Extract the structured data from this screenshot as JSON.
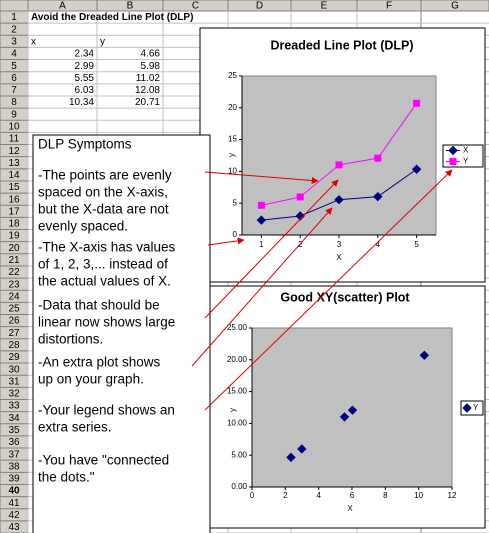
{
  "sheet": {
    "columns": [
      "A",
      "B",
      "C",
      "D",
      "E",
      "F",
      "G"
    ],
    "row_numbers": [
      1,
      2,
      3,
      4,
      5,
      6,
      7,
      8,
      9,
      10,
      11,
      12,
      13,
      14,
      15,
      16,
      17,
      18,
      19,
      20,
      21,
      22,
      23,
      24,
      25,
      26,
      27,
      28,
      29,
      30,
      31,
      32,
      33,
      34,
      35,
      36,
      37,
      38,
      39,
      40,
      41,
      42,
      43
    ],
    "title": "Avoid the Dreaded Line Plot (DLP)",
    "header": [
      "x",
      "y"
    ],
    "rows": [
      [
        2.34,
        4.66
      ],
      [
        2.99,
        5.98
      ],
      [
        5.55,
        11.02
      ],
      [
        6.03,
        12.08
      ],
      [
        10.34,
        20.71
      ]
    ]
  },
  "note": {
    "title": "DLP Symptoms",
    "items": [
      [
        "-The points are evenly",
        "spaced on the X-axis,",
        "but the X-data are not",
        "evenly spaced."
      ],
      [
        "-The X-axis has values",
        "of 1, 2, 3,... instead of",
        "the actual values of X."
      ],
      [
        "-Data that should be",
        "linear now shows large",
        "distortions."
      ],
      [
        "-An extra plot  shows",
        "up on your graph."
      ],
      [
        "-Your legend shows an",
        "extra series."
      ],
      [
        "-You have \"connected",
        "the dots.\""
      ]
    ]
  },
  "chart_data": [
    {
      "type": "line",
      "title": "Dreaded Line Plot (DLP)",
      "x_label": "X",
      "y_label": "y",
      "categories": [
        1,
        2,
        3,
        4,
        5
      ],
      "series": [
        {
          "name": "X",
          "color": "#000080",
          "marker": "diamond",
          "values": [
            2.34,
            2.99,
            5.55,
            6.03,
            10.34
          ]
        },
        {
          "name": "Y",
          "color": "#ff00ff",
          "marker": "square",
          "values": [
            4.66,
            5.98,
            11.02,
            12.08,
            20.71
          ]
        }
      ],
      "ylim": [
        0,
        25
      ],
      "yticks": [
        0,
        5,
        10,
        15,
        20,
        25
      ],
      "legend": "right"
    },
    {
      "type": "scatter",
      "title": "Good XY(scatter) Plot",
      "x_label": "X",
      "y_label": "y",
      "x": [
        2.34,
        2.99,
        5.55,
        6.03,
        10.34
      ],
      "series": [
        {
          "name": "Y",
          "color": "#000080",
          "marker": "diamond",
          "values": [
            4.66,
            5.98,
            11.02,
            12.08,
            20.71
          ]
        }
      ],
      "xlim": [
        0,
        12
      ],
      "xticks": [
        0,
        2,
        4,
        6,
        8,
        10,
        12
      ],
      "ylim": [
        0,
        25
      ],
      "yticks": [
        {
          "value": 0,
          "label": "0.00"
        },
        {
          "value": 5,
          "label": "5.00"
        },
        {
          "value": 10,
          "label": "10.00"
        },
        {
          "value": 15,
          "label": "15.00"
        },
        {
          "value": 20,
          "label": "20.00"
        },
        {
          "value": 25,
          "label": "25.00"
        }
      ],
      "legend": "right"
    }
  ]
}
